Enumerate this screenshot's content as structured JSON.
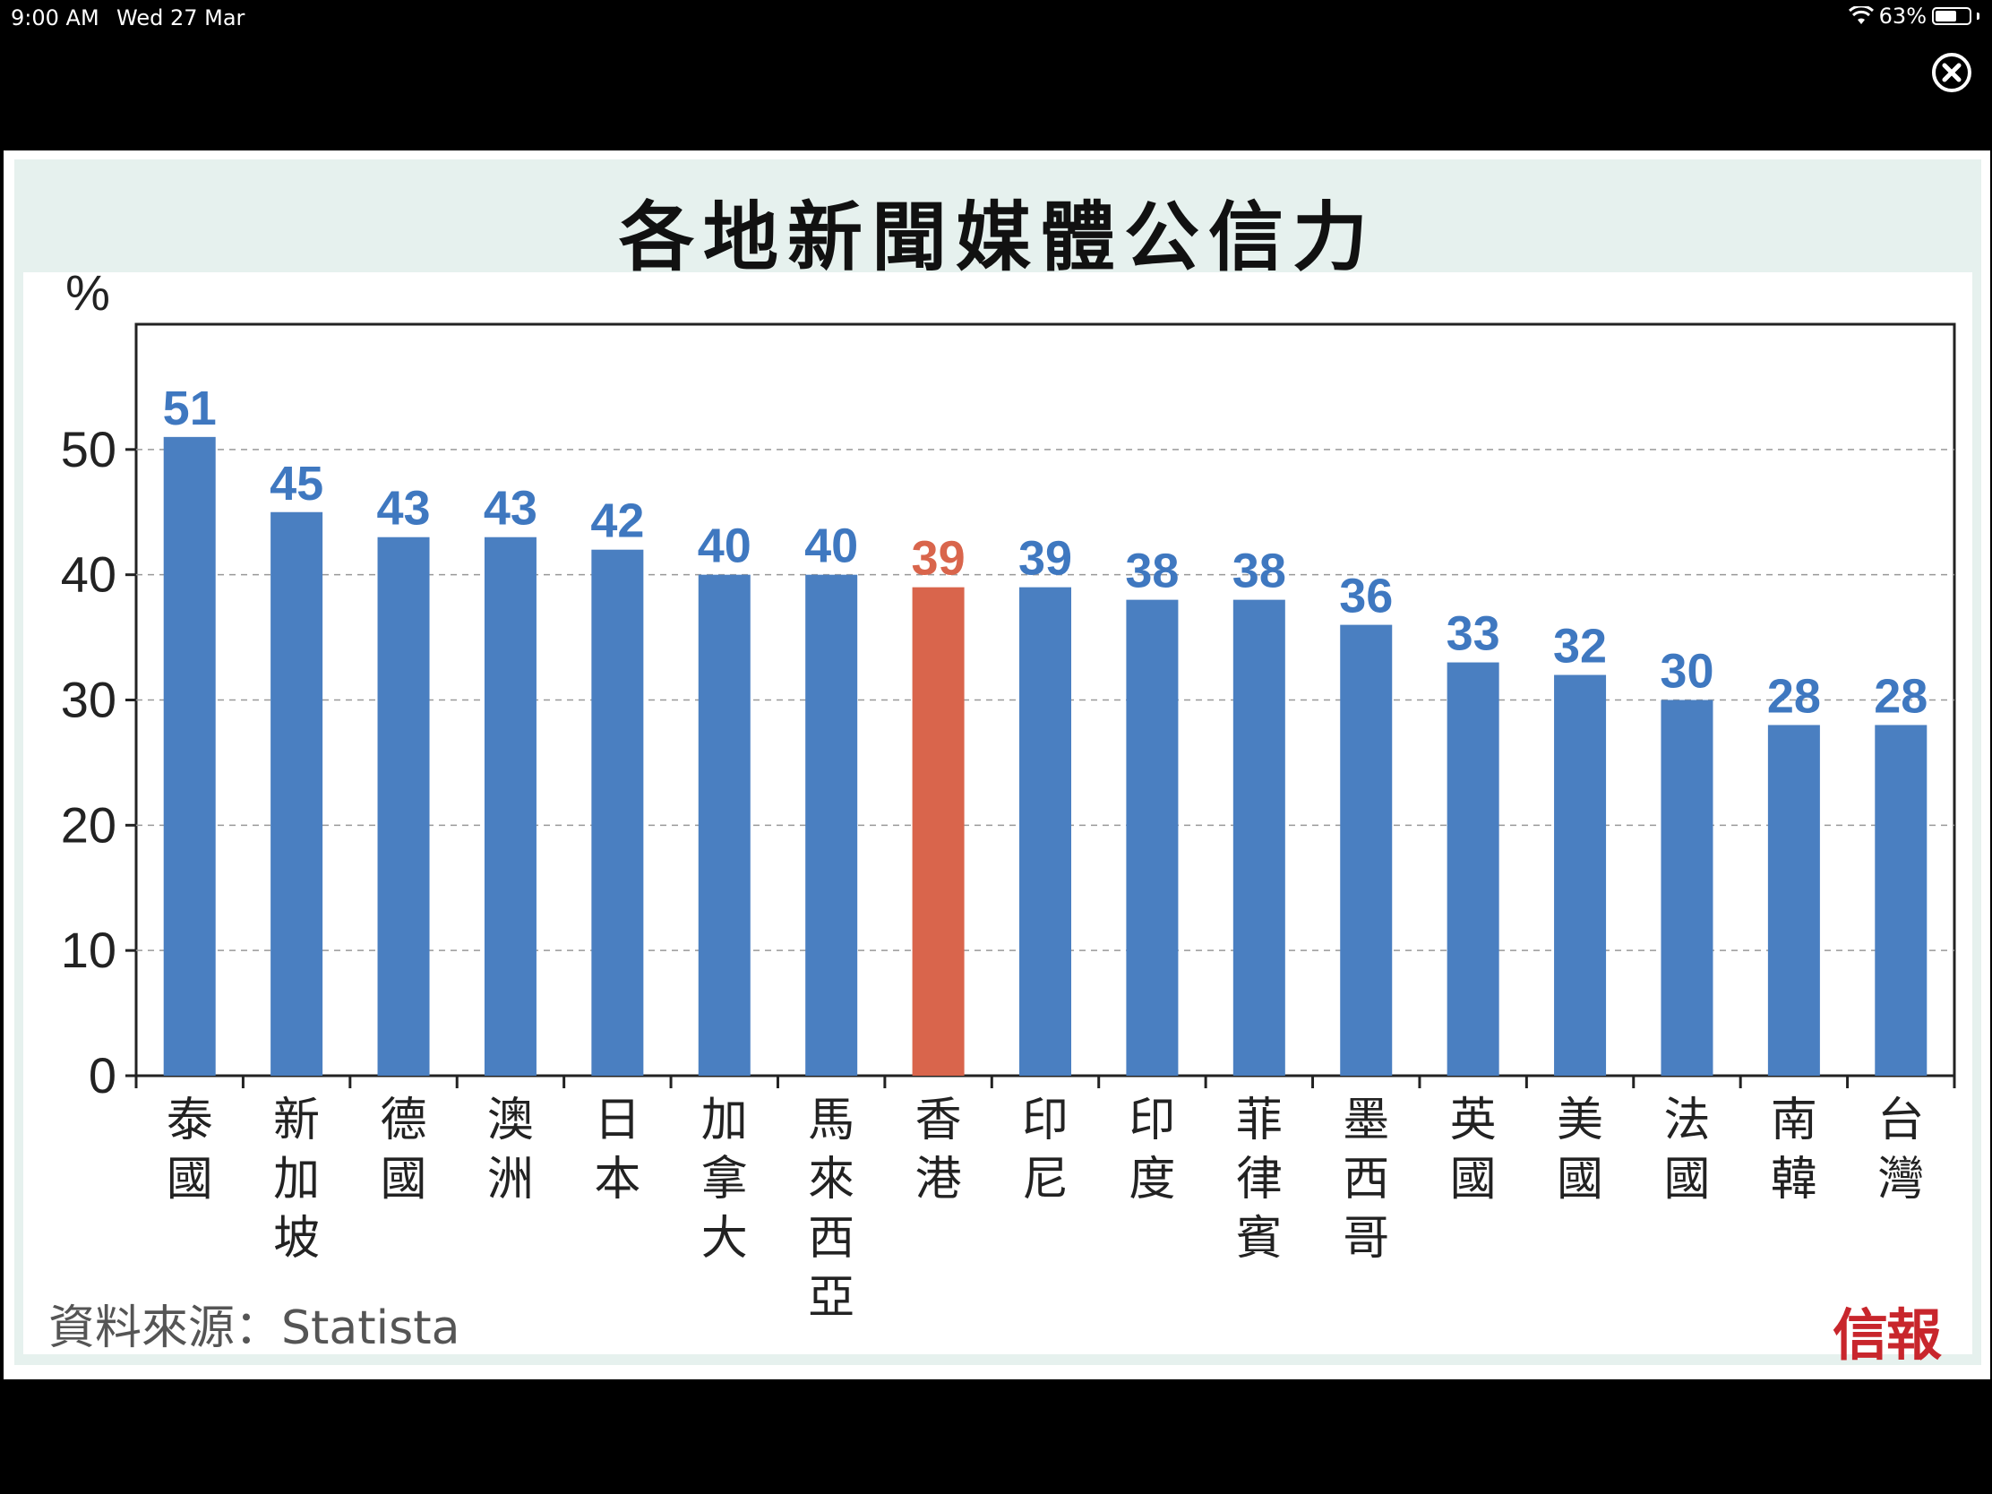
{
  "status_bar": {
    "time": "9:00 AM",
    "date": "Wed 27 Mar",
    "battery": "63%",
    "battery_level": 0.63,
    "wifi_icon": "wifi-icon",
    "battery_icon": "battery-icon"
  },
  "viewer": {
    "close_icon": "close-circle-icon"
  },
  "chart_data": {
    "type": "bar",
    "title": "各地新聞媒體公信力",
    "ylabel": "%",
    "ylim": [
      0,
      60
    ],
    "yticks": [
      0,
      10,
      20,
      30,
      40,
      50
    ],
    "grid": true,
    "categories": [
      "泰國",
      "新加坡",
      "德國",
      "澳洲",
      "日本",
      "加拿大",
      "馬來西亞",
      "香港",
      "印尼",
      "印度",
      "菲律賓",
      "墨西哥",
      "英國",
      "美國",
      "法國",
      "南韓",
      "台灣"
    ],
    "values": [
      51,
      45,
      43,
      43,
      42,
      40,
      40,
      39,
      39,
      38,
      38,
      36,
      33,
      32,
      30,
      28,
      28
    ],
    "highlight_index": 7,
    "colors": {
      "bar": "#4a7fc1",
      "highlight": "#d9654c",
      "label": "#3f78c0",
      "highlight_label": "#d9654c"
    },
    "source": "資料來源：Statista",
    "logo": "信報"
  }
}
